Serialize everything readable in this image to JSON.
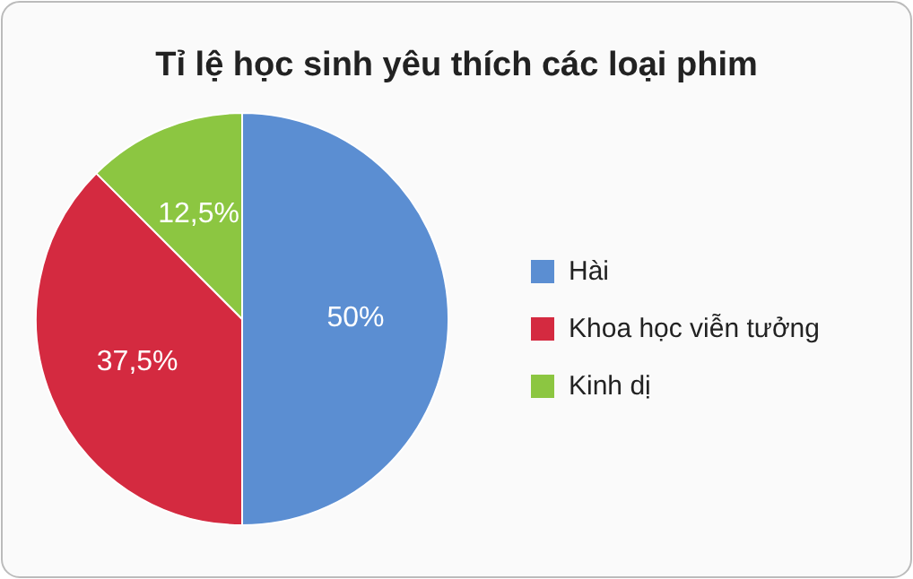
{
  "chart_data": {
    "type": "pie",
    "title": "Tỉ lệ học sinh yêu thích các loại phim",
    "categories": [
      "Hài",
      "Khoa học viễn tưởng",
      "Kinh dị"
    ],
    "values": [
      50,
      37.5,
      12.5
    ],
    "colors": [
      "#5b8ed2",
      "#d42a40",
      "#8cc641"
    ],
    "value_labels": [
      "50%",
      "37,5%",
      "12,5%"
    ],
    "legend": "right"
  }
}
